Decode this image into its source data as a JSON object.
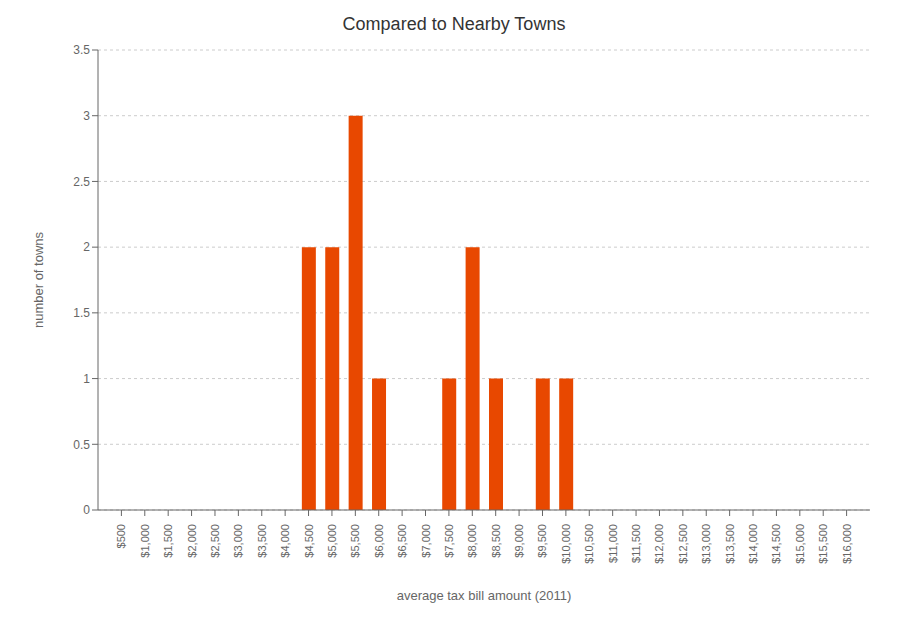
{
  "chart_data": {
    "type": "bar",
    "title": "Compared to Nearby Towns",
    "x_label": "average tax bill amount (2011)",
    "y_label": "number of towns",
    "x": [
      4500,
      5000,
      5500,
      6000,
      7500,
      8000,
      8500,
      9500,
      10000
    ],
    "values": [
      2,
      2,
      3,
      1,
      1,
      2,
      1,
      1,
      1
    ],
    "color": "#e84800",
    "xlim": [
      0,
      16500
    ],
    "xticks": [
      {
        "value": 500,
        "label": "$500"
      },
      {
        "value": 1000,
        "label": "$1,000"
      },
      {
        "value": 1500,
        "label": "$1,500"
      },
      {
        "value": 2000,
        "label": "$2,000"
      },
      {
        "value": 2500,
        "label": "$2,500"
      },
      {
        "value": 3000,
        "label": "$3,000"
      },
      {
        "value": 3500,
        "label": "$3,500"
      },
      {
        "value": 4000,
        "label": "$4,000"
      },
      {
        "value": 4500,
        "label": "$4,500"
      },
      {
        "value": 5000,
        "label": "$5,000"
      },
      {
        "value": 5500,
        "label": "$5,500"
      },
      {
        "value": 6000,
        "label": "$6,000"
      },
      {
        "value": 6500,
        "label": "$6,500"
      },
      {
        "value": 7000,
        "label": "$7,000"
      },
      {
        "value": 7500,
        "label": "$7,500"
      },
      {
        "value": 8000,
        "label": "$8,000"
      },
      {
        "value": 8500,
        "label": "$8,500"
      },
      {
        "value": 9000,
        "label": "$9,000"
      },
      {
        "value": 9500,
        "label": "$9,500"
      },
      {
        "value": 10000,
        "label": "$10,000"
      },
      {
        "value": 10500,
        "label": "$10,500"
      },
      {
        "value": 11000,
        "label": "$11,000"
      },
      {
        "value": 11500,
        "label": "$11,500"
      },
      {
        "value": 12000,
        "label": "$12,000"
      },
      {
        "value": 12500,
        "label": "$12,500"
      },
      {
        "value": 13000,
        "label": "$13,000"
      },
      {
        "value": 13500,
        "label": "$13,500"
      },
      {
        "value": 14000,
        "label": "$14,000"
      },
      {
        "value": 14500,
        "label": "$14,500"
      },
      {
        "value": 15000,
        "label": "$15,000"
      },
      {
        "value": 15500,
        "label": "$15,500"
      },
      {
        "value": 16000,
        "label": "$16,000"
      }
    ],
    "ylim": [
      0,
      3.5
    ],
    "yticks": [
      0,
      0.5,
      1,
      1.5,
      2,
      2.5,
      3,
      3.5
    ],
    "grid": true
  }
}
